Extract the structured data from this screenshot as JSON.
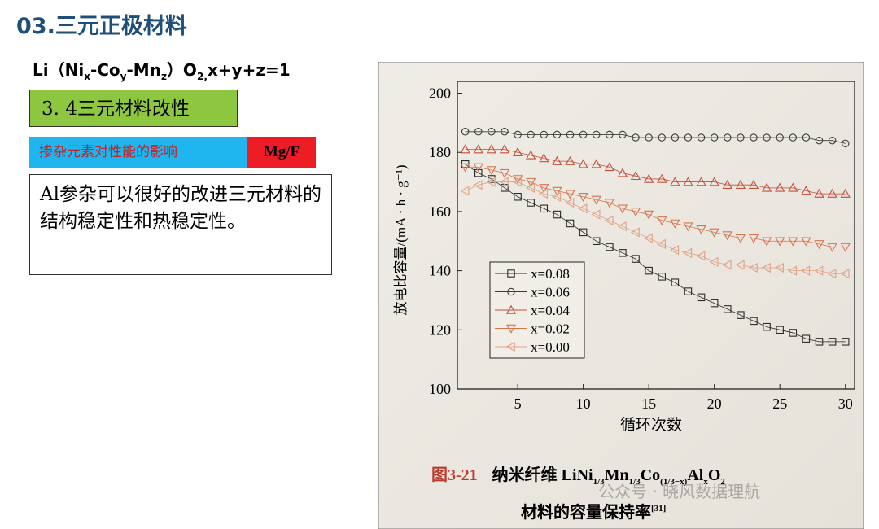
{
  "slide": {
    "title": "03.三元正极材料",
    "formula": [
      "Li（Ni",
      "x",
      "-Co",
      "y",
      "-Mn",
      "z",
      "）O",
      "2",
      ",",
      "x+y+z=1"
    ],
    "section": "3. 4三元材料改性",
    "topic": "掺杂元素对性能的影响",
    "elements": "Mg/F",
    "text": "Al参杂可以很好的改进三元材料的结构稳定性和热稳定性。",
    "caption": [
      "图3-21",
      "纳米纤维 LiNi",
      "1/3",
      "Mn",
      "1/3",
      "Co",
      "(1/3−x)",
      "Al",
      "x",
      "O",
      "2",
      "材料的容量保持率",
      "[31]"
    ],
    "watermark": "公众号 · 晓风数据理航"
  },
  "chart_data": {
    "type": "line",
    "x_label": "循环次数",
    "y_label": "放电比容量/(mA · h · g⁻¹)",
    "x": [
      1,
      2,
      3,
      4,
      5,
      6,
      7,
      8,
      9,
      10,
      11,
      12,
      13,
      14,
      15,
      16,
      17,
      18,
      19,
      20,
      21,
      22,
      23,
      24,
      25,
      26,
      27,
      28,
      29,
      30
    ],
    "xlim": [
      0.4,
      30.7
    ],
    "xticks": [
      5,
      10,
      15,
      20,
      25,
      30
    ],
    "ylim": [
      100,
      204
    ],
    "yticks": [
      100,
      120,
      140,
      160,
      180,
      200
    ],
    "series": [
      {
        "name": "x=0.08",
        "color": "#2b2b2b",
        "marker": "square",
        "values": [
          176,
          173,
          171,
          168,
          165,
          163,
          161,
          159,
          156,
          153,
          150,
          148,
          146,
          144,
          140,
          138,
          136,
          133,
          131,
          129,
          127,
          125,
          123,
          121,
          120,
          119,
          117,
          116,
          116,
          116
        ]
      },
      {
        "name": "x=0.06",
        "color": "#3a3a3a",
        "marker": "circle",
        "values": [
          187,
          187,
          187,
          187,
          186,
          186,
          186,
          186,
          186,
          186,
          186,
          186,
          186,
          185,
          185,
          185,
          185,
          185,
          185,
          185,
          185,
          185,
          185,
          185,
          185,
          185,
          185,
          184,
          184,
          183
        ]
      },
      {
        "name": "x=0.04",
        "color": "#c4503a",
        "marker": "triangle-up",
        "values": [
          181,
          181,
          181,
          181,
          180,
          179,
          178,
          177,
          177,
          176,
          176,
          175,
          173,
          172,
          171,
          171,
          170,
          170,
          170,
          170,
          169,
          169,
          169,
          168,
          168,
          168,
          167,
          166,
          166,
          166
        ]
      },
      {
        "name": "x=0.02",
        "color": "#d8744c",
        "marker": "triangle-down",
        "values": [
          175,
          175,
          174,
          173,
          171,
          170,
          168,
          167,
          166,
          165,
          164,
          163,
          161,
          160,
          159,
          157,
          156,
          155,
          154,
          153,
          152,
          151,
          151,
          150,
          150,
          150,
          150,
          149,
          148,
          148
        ]
      },
      {
        "name": "x=0.00",
        "color": "#e0a185",
        "marker": "triangle-left",
        "values": [
          167,
          169,
          170,
          170,
          170,
          168,
          166,
          165,
          163,
          161,
          159,
          157,
          155,
          153,
          151,
          149,
          147,
          146,
          145,
          143,
          142,
          142,
          141,
          141,
          141,
          140,
          140,
          140,
          139,
          139
        ]
      }
    ]
  }
}
